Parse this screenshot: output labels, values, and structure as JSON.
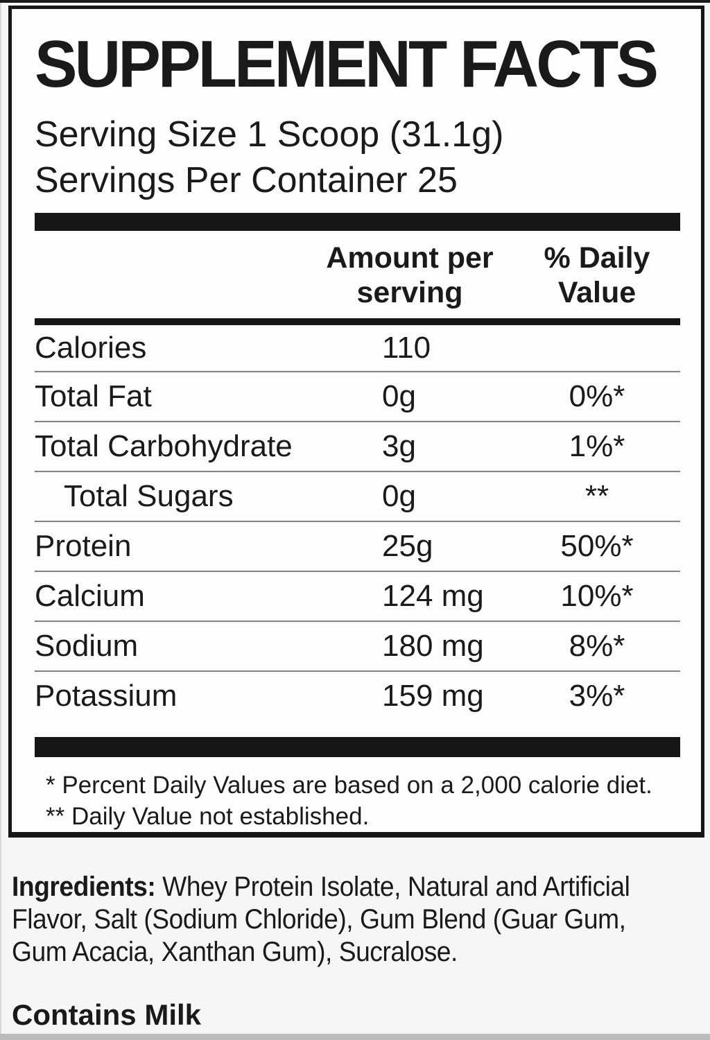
{
  "panel": {
    "title": "SUPPLEMENT FACTS",
    "serving_size": "Serving Size 1 Scoop (31.1g)",
    "servings_per_container": "Servings Per Container 25",
    "columns": {
      "amount": "Amount per serving",
      "daily_value": "% Daily Value"
    },
    "footnotes": [
      "* Percent Daily Values are based on a 2,000 calorie diet.",
      "** Daily Value not established."
    ]
  },
  "nutrients": [
    {
      "name": "Calories",
      "amount": "110",
      "dv": ""
    },
    {
      "name": "Total Fat",
      "amount": "0g",
      "dv": "0%*"
    },
    {
      "name": "Total Carbohydrate",
      "amount": "3g",
      "dv": "1%*"
    },
    {
      "name": "Total Sugars",
      "amount": "0g",
      "dv": "**"
    },
    {
      "name": "Protein",
      "amount": "25g",
      "dv": "50%*"
    },
    {
      "name": "Calcium",
      "amount": "124 mg",
      "dv": "10%*"
    },
    {
      "name": "Sodium",
      "amount": "180 mg",
      "dv": "8%*"
    },
    {
      "name": "Potassium",
      "amount": "159 mg",
      "dv": "3%*"
    }
  ],
  "ingredients": {
    "label": "Ingredients:",
    "lines": [
      " Whey Protein Isolate, Natural and Artificial",
      "Flavor, Salt (Sodium Chloride), Gum Blend (Guar Gum,",
      "Gum Acacia, Xanthan Gum), Sucralose."
    ]
  },
  "allergen": "Contains Milk",
  "colors": {
    "text": "#1a1a1a",
    "bar": "#161616",
    "divider": "#808080",
    "panel_background": "#fdfdfd",
    "page_background": "#f6f6f5"
  }
}
